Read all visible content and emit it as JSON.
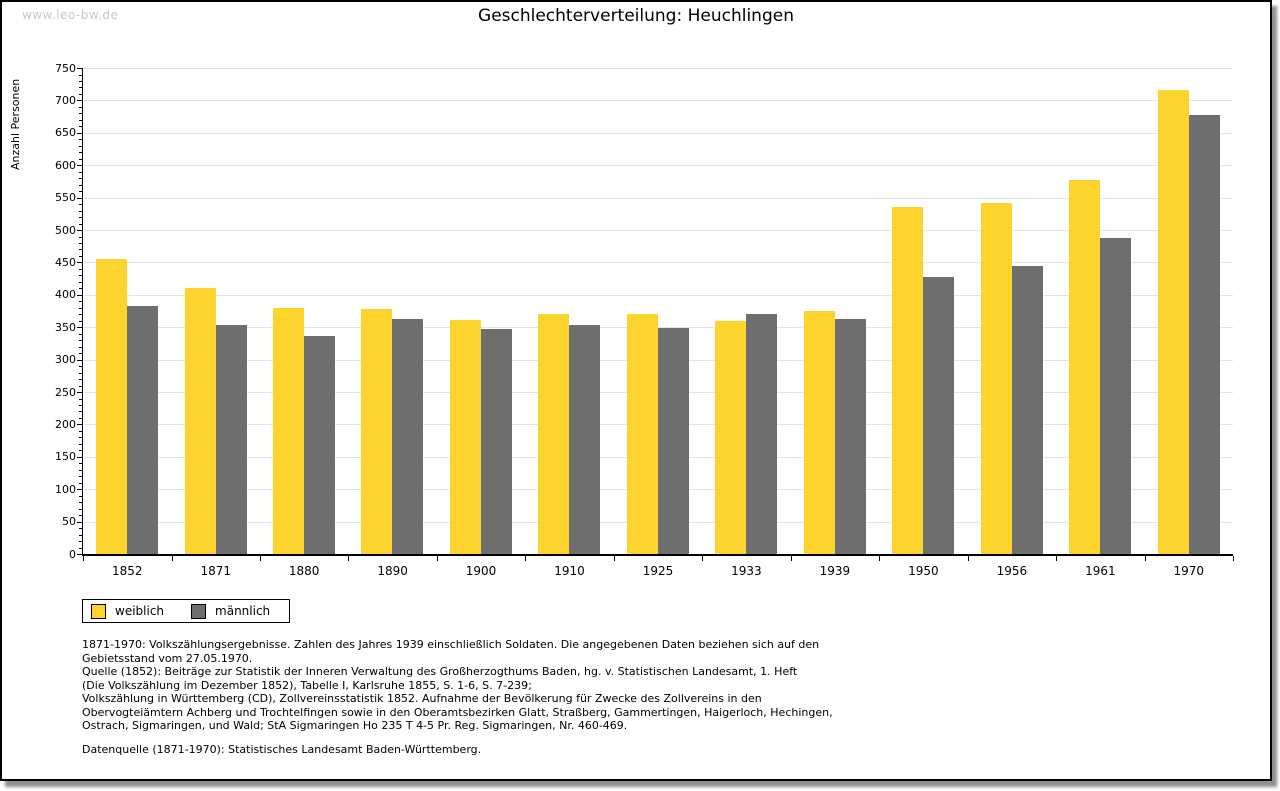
{
  "watermark": "www.leo-bw.de",
  "chart_data": {
    "type": "bar",
    "title": "Geschlechterverteilung: Heuchlingen",
    "xlabel": "",
    "ylabel": "Anzahl Personen",
    "ylim": [
      0,
      750
    ],
    "yticks": [
      0,
      50,
      100,
      150,
      200,
      250,
      300,
      350,
      400,
      450,
      500,
      550,
      600,
      650,
      700,
      750
    ],
    "grid": true,
    "legend_position": "bottom-left",
    "categories": [
      "1852",
      "1871",
      "1880",
      "1890",
      "1900",
      "1910",
      "1925",
      "1933",
      "1939",
      "1950",
      "1956",
      "1961",
      "1970"
    ],
    "series": [
      {
        "name": "weiblich",
        "color": "#FDD32D",
        "values": [
          456,
          410,
          380,
          378,
          361,
          371,
          371,
          360,
          375,
          536,
          542,
          577,
          716
        ]
      },
      {
        "name": "männlich",
        "color": "#6E6E6E",
        "values": [
          383,
          353,
          337,
          362,
          347,
          354,
          349,
          371,
          362,
          428,
          445,
          487,
          677
        ]
      }
    ],
    "gridline_color": "#e4e4e4"
  },
  "footnotes": [
    "1871-1970: Volkszählungsergebnisse. Zahlen des Jahres 1939 einschließlich Soldaten. Die angegebenen Daten beziehen sich auf den",
    "Gebietsstand vom 27.05.1970.",
    "Quelle (1852): Beiträge zur Statistik der Inneren Verwaltung des Großherzogthums Baden, hg. v. Statistischen Landesamt, 1. Heft",
    "(Die Volkszählung im Dezember 1852), Tabelle I, Karlsruhe 1855, S. 1-6, S. 7-239;",
    "Volkszählung in Württemberg (CD), Zollvereinsstatistik 1852. Aufnahme der Bevölkerung für Zwecke des Zollvereins in den",
    "Obervogteiämtern Achberg und Trochtelfingen sowie in den Oberamtsbezirken Glatt, Straßberg, Gammertingen, Haigerloch, Hechingen,",
    "Ostrach, Sigmaringen, und Wald; StA Sigmaringen Ho 235 T 4-5 Pr. Reg. Sigmaringen, Nr. 460-469."
  ],
  "datasource": "Datenquelle (1871-1970): Statistisches Landesamt Baden-Württemberg."
}
